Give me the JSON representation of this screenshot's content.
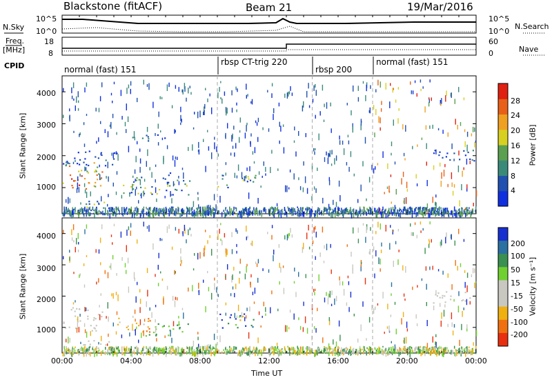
{
  "header": {
    "station": "Blackstone (fitACF)",
    "beam": "Beam 21",
    "date": "19/Mar/2016"
  },
  "top_panels": {
    "nsky_label": "N.Sky",
    "nsky_ticks": [
      "10^5",
      "10^0"
    ],
    "nsearch_label": "N.Search",
    "nsearch_ticks": [
      "10^5",
      "10^0"
    ],
    "freq_label": "Freq.",
    "freq_unit": "[MHz]",
    "freq_ticks": [
      "18",
      "8"
    ],
    "nave_label": "Nave",
    "nave_ticks": [
      "60",
      "0"
    ],
    "cpid_label": "CPID"
  },
  "cpid_segments": [
    {
      "label": "normal (fast) 151",
      "start_h": 0
    },
    {
      "label": "rbsp CT-trig 220",
      "start_h": 9
    },
    {
      "label": "rbsp 200",
      "start_h": 14.5
    },
    {
      "label": "normal (fast) 151",
      "start_h": 18
    }
  ],
  "axes": {
    "ylabel": "Slant Range [km]",
    "xlabel": "Time UT",
    "x_ticks": [
      "00:00",
      "04:00",
      "08:00",
      "12:00",
      "16:00",
      "20:00",
      "00:00"
    ],
    "y_ticks": [
      "1000",
      "2000",
      "3000",
      "4000"
    ]
  },
  "power_colorbar": {
    "label": "Power [dB]",
    "ticks": [
      "4",
      "8",
      "12",
      "16",
      "20",
      "24",
      "28"
    ],
    "colors": [
      "#1030e0",
      "#2050b0",
      "#3a8a7a",
      "#5aa050",
      "#d8d020",
      "#f0a020",
      "#e86018",
      "#e02010"
    ]
  },
  "velocity_colorbar": {
    "label": "Velocity [m s⁻¹]",
    "ticks": [
      "200",
      "100",
      "50",
      "15",
      "-15",
      "-50",
      "-100",
      "-200"
    ],
    "colors": [
      "#1830d0",
      "#2a70a0",
      "#3a9050",
      "#70d030",
      "#c8c8c0",
      "#c8c8c0",
      "#f0b010",
      "#f07010",
      "#e83010"
    ]
  },
  "chart_data": {
    "type": "heatmap",
    "title": "Blackstone (fitACF)",
    "x_unit": "hours UT",
    "xlim": [
      0,
      24
    ],
    "ylim": [
      180,
      4500
    ],
    "power_regions": [
      {
        "t0": 0.0,
        "t1": 2.3,
        "r0": 900,
        "r1": 1800,
        "level": "high"
      },
      {
        "t0": 1.0,
        "t1": 2.7,
        "r0": 200,
        "r1": 650,
        "level": "medium"
      },
      {
        "t0": 3.0,
        "t1": 7.4,
        "r0": 780,
        "r1": 1350,
        "level": "medium"
      },
      {
        "t0": 5.8,
        "t1": 6.5,
        "r0": 1250,
        "r1": 1500,
        "level": "low"
      },
      {
        "t0": 9.0,
        "t1": 11.2,
        "r0": 1000,
        "r1": 1500,
        "level": "medium"
      },
      {
        "t0": 0.0,
        "t1": 3.2,
        "r0": 1700,
        "r1": 2200,
        "level": "low"
      },
      {
        "t0": 4.0,
        "t1": 6.0,
        "r0": 2450,
        "r1": 2700,
        "level": "low"
      },
      {
        "t0": 21.5,
        "t1": 24.0,
        "r0": 1800,
        "r1": 2200,
        "level": "low"
      }
    ],
    "velocity_regions": [
      {
        "t0": 0.0,
        "t1": 2.3,
        "r0": 900,
        "r1": 1700,
        "class": "ground"
      },
      {
        "t0": 1.0,
        "t1": 2.7,
        "r0": 200,
        "r1": 600,
        "class": "ground"
      },
      {
        "t0": 3.0,
        "t1": 5.2,
        "r0": 850,
        "r1": 1350,
        "class": "negative"
      },
      {
        "t0": 4.8,
        "t1": 7.5,
        "r0": 750,
        "r1": 1200,
        "class": "positive"
      },
      {
        "t0": 9.0,
        "t1": 11.2,
        "r0": 1000,
        "r1": 1500,
        "class": "mixed"
      },
      {
        "t0": 21.5,
        "t1": 24.0,
        "r0": 1800,
        "r1": 2200,
        "class": "ground"
      }
    ]
  }
}
